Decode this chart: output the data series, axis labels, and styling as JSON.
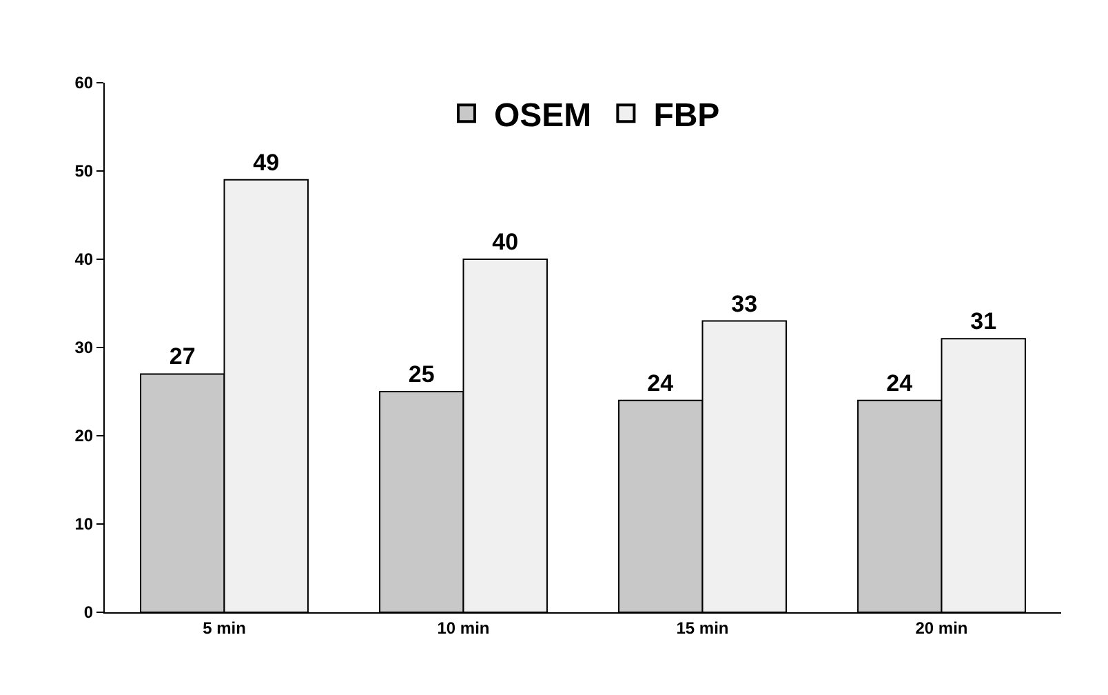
{
  "chart_data": {
    "type": "bar",
    "categories": [
      "5 min",
      "10 min",
      "15 min",
      "20 min"
    ],
    "series": [
      {
        "name": "OSEM",
        "color": "#c8c8c8",
        "values": [
          27,
          25,
          24,
          24
        ]
      },
      {
        "name": "FBP",
        "color": "#f0f0f0",
        "values": [
          49,
          40,
          33,
          31
        ]
      }
    ],
    "ylim": [
      0,
      60
    ],
    "yticks": [
      0,
      10,
      20,
      30,
      40,
      50,
      60
    ],
    "data_labels": true,
    "legend": "top"
  }
}
